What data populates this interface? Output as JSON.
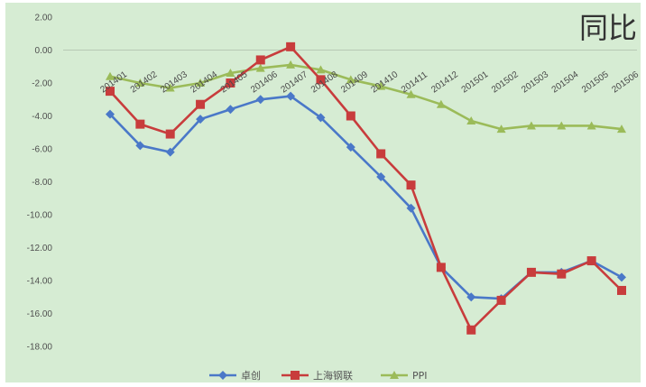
{
  "chart_data": {
    "type": "line",
    "title": "同比",
    "xlabel": "",
    "ylabel": "",
    "ylim": [
      -18,
      2
    ],
    "y_ticks": [
      "2.00",
      "0.00",
      "-2.00",
      "-4.00",
      "-6.00",
      "-8.00",
      "-10.00",
      "-12.00",
      "-14.00",
      "-16.00",
      "-18.00"
    ],
    "categories": [
      "201401",
      "201402",
      "201403",
      "201404",
      "201405",
      "201406",
      "201407",
      "201408",
      "201409",
      "201410",
      "201411",
      "201412",
      "201501",
      "201502",
      "201503",
      "201504",
      "201505",
      "201506"
    ],
    "grid": false,
    "legend_position": "bottom",
    "series": [
      {
        "name": "卓创",
        "color": "#4a78c8",
        "marker": "diamond",
        "values": [
          -3.9,
          -5.8,
          -6.2,
          -4.2,
          -3.6,
          -3.0,
          -2.8,
          -4.1,
          -5.9,
          -7.7,
          -9.6,
          -13.2,
          -15.0,
          -15.1,
          -13.5,
          -13.5,
          -12.8,
          -13.8
        ]
      },
      {
        "name": "上海钢联",
        "color": "#c83c3c",
        "marker": "square",
        "values": [
          -2.5,
          -4.5,
          -5.1,
          -3.3,
          -2.0,
          -0.6,
          0.2,
          -1.8,
          -4.0,
          -6.3,
          -8.2,
          -13.2,
          -17.0,
          -15.2,
          -13.5,
          -13.6,
          -12.8,
          -14.6
        ]
      },
      {
        "name": "PPI",
        "color": "#9bbb59",
        "marker": "triangle",
        "values": [
          -1.6,
          -2.0,
          -2.3,
          -2.0,
          -1.4,
          -1.1,
          -0.9,
          -1.2,
          -1.8,
          -2.2,
          -2.7,
          -3.3,
          -4.3,
          -4.8,
          -4.6,
          -4.6,
          -4.6,
          -4.8
        ]
      }
    ]
  }
}
